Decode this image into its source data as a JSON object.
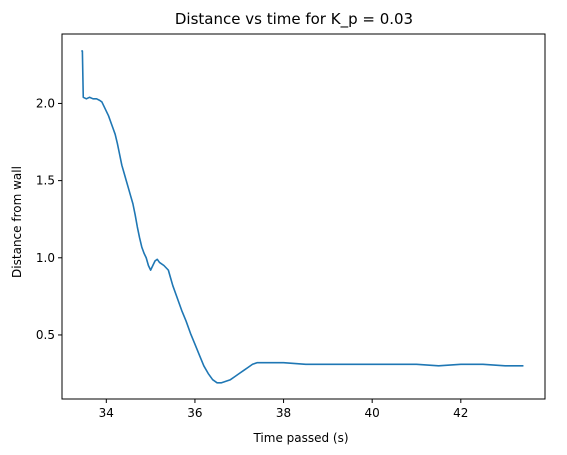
{
  "chart_data": {
    "type": "line",
    "title": "Distance vs time for K_p = 0.03",
    "xlabel": "Time passed (s)",
    "ylabel": "Distance from wall",
    "xlim": [
      33.0,
      43.9
    ],
    "ylim": [
      0.085,
      2.45
    ],
    "xticks": [
      34,
      36,
      38,
      40,
      42
    ],
    "yticks": [
      0.5,
      1.0,
      1.5,
      2.0
    ],
    "xtick_labels": [
      "34",
      "36",
      "38",
      "40",
      "42"
    ],
    "ytick_labels": [
      "0.5",
      "1.0",
      "1.5",
      "2.0"
    ],
    "grid": false,
    "legend": "none",
    "series_color": "#1f77b4",
    "series": [
      {
        "x": [
          33.45,
          33.46,
          33.48,
          33.55,
          33.62,
          33.7,
          33.78,
          33.85,
          33.9,
          33.95,
          34.0,
          34.05,
          34.1,
          34.15,
          34.2,
          34.25,
          34.3,
          34.35,
          34.4,
          34.45,
          34.5,
          34.55,
          34.6,
          34.65,
          34.7,
          34.75,
          34.8,
          34.85,
          34.9,
          34.95,
          35.0,
          35.05,
          35.1,
          35.15,
          35.2,
          35.3,
          35.4,
          35.45,
          35.5,
          35.6,
          35.7,
          35.8,
          35.9,
          36.0,
          36.1,
          36.2,
          36.3,
          36.4,
          36.5,
          36.6,
          36.7,
          36.8,
          36.9,
          37.0,
          37.1,
          37.2,
          37.3,
          37.4,
          37.5,
          37.6,
          37.8,
          38.0,
          38.5,
          39.0,
          39.5,
          40.0,
          40.5,
          41.0,
          41.5,
          42.0,
          42.5,
          43.0,
          43.4
        ],
        "y": [
          2.34,
          2.34,
          2.04,
          2.03,
          2.04,
          2.03,
          2.03,
          2.02,
          2.01,
          1.98,
          1.95,
          1.92,
          1.88,
          1.84,
          1.8,
          1.74,
          1.67,
          1.6,
          1.55,
          1.5,
          1.45,
          1.4,
          1.35,
          1.28,
          1.2,
          1.13,
          1.07,
          1.03,
          1.0,
          0.95,
          0.92,
          0.95,
          0.98,
          0.99,
          0.97,
          0.95,
          0.92,
          0.87,
          0.82,
          0.74,
          0.66,
          0.59,
          0.51,
          0.44,
          0.37,
          0.3,
          0.25,
          0.21,
          0.19,
          0.19,
          0.2,
          0.21,
          0.23,
          0.25,
          0.27,
          0.29,
          0.31,
          0.32,
          0.32,
          0.32,
          0.32,
          0.32,
          0.31,
          0.31,
          0.31,
          0.31,
          0.31,
          0.31,
          0.3,
          0.31,
          0.31,
          0.3,
          0.3
        ]
      }
    ]
  }
}
